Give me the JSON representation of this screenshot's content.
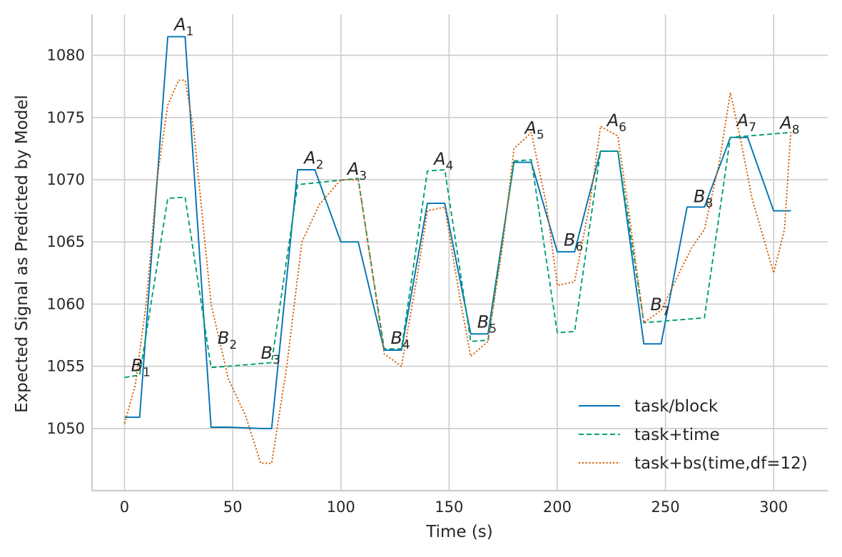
{
  "chart_data": {
    "type": "line",
    "xlabel": "Time (s)",
    "ylabel": "Expected Signal as Predicted by Model",
    "xlim": [
      -15,
      325
    ],
    "ylim": [
      1045,
      1083.3
    ],
    "xticks": [
      0,
      50,
      100,
      150,
      200,
      250,
      300
    ],
    "yticks": [
      1050,
      1055,
      1060,
      1065,
      1070,
      1075,
      1080
    ],
    "grid": true,
    "legend_position": "lower-right",
    "series": [
      {
        "name": "task/block",
        "color": "#0072B2",
        "dash": "solid",
        "x": [
          0,
          7,
          20,
          28,
          40,
          48,
          63,
          68,
          80,
          88,
          100,
          108,
          120,
          128,
          140,
          148,
          160,
          168,
          180,
          188,
          200,
          208,
          220,
          228,
          240,
          248,
          260,
          268,
          280,
          288,
          300,
          308
        ],
        "y": [
          1050.9,
          1050.9,
          1081.5,
          1081.5,
          1050.1,
          1050.1,
          1050.0,
          1050.0,
          1070.8,
          1070.8,
          1065.0,
          1065.0,
          1056.3,
          1056.3,
          1068.1,
          1068.1,
          1057.6,
          1057.6,
          1071.4,
          1071.4,
          1064.2,
          1064.2,
          1072.3,
          1072.3,
          1056.8,
          1056.8,
          1067.8,
          1067.8,
          1073.4,
          1073.4,
          1067.5,
          1067.5
        ]
      },
      {
        "name": "task+time",
        "color": "#009E73",
        "dash": "dashed",
        "x": [
          0,
          7,
          20,
          28,
          40,
          48,
          68,
          80,
          108,
          120,
          128,
          140,
          148,
          160,
          168,
          180,
          188,
          200,
          208,
          220,
          228,
          240,
          268,
          280,
          308
        ],
        "y": [
          1054.1,
          1054.3,
          1068.5,
          1068.6,
          1054.9,
          1055.0,
          1055.3,
          1069.6,
          1070.1,
          1056.4,
          1056.4,
          1070.7,
          1070.8,
          1057.0,
          1057.1,
          1071.5,
          1071.6,
          1057.7,
          1057.8,
          1072.3,
          1072.3,
          1058.5,
          1058.9,
          1073.4,
          1073.8
        ]
      },
      {
        "name": "task+bs(time,df=12)",
        "color": "#D55E00",
        "dash": "dotted",
        "x": [
          0,
          5,
          10,
          15,
          20,
          25,
          28,
          32,
          40,
          48,
          56,
          63,
          68,
          75,
          82,
          90,
          100,
          108,
          115,
          120,
          128,
          135,
          140,
          148,
          155,
          160,
          168,
          175,
          180,
          188,
          195,
          200,
          208,
          215,
          220,
          228,
          235,
          240,
          248,
          255,
          262,
          268,
          275,
          280,
          285,
          290,
          300,
          305,
          308
        ],
        "y": [
          1050.4,
          1053.5,
          1060.0,
          1070.0,
          1076.0,
          1078.0,
          1078.0,
          1074.0,
          1060.0,
          1054.0,
          1051.0,
          1047.2,
          1047.2,
          1055.0,
          1065.0,
          1068.0,
          1070.0,
          1070.0,
          1062.0,
          1056.0,
          1055.0,
          1062.0,
          1067.5,
          1067.8,
          1060.5,
          1055.8,
          1057.0,
          1065.0,
          1072.5,
          1073.8,
          1068.0,
          1061.5,
          1061.8,
          1068.0,
          1074.3,
          1073.5,
          1065.0,
          1058.5,
          1059.5,
          1062.0,
          1064.5,
          1066.0,
          1071.5,
          1077.0,
          1073.0,
          1068.5,
          1062.5,
          1066.0,
          1074.0
        ]
      }
    ],
    "annotations": [
      {
        "base": "A",
        "sub": "1",
        "x": 23,
        "y": 1082.0
      },
      {
        "base": "B",
        "sub": "1",
        "x": 3,
        "y": 1054.6
      },
      {
        "base": "B",
        "sub": "2",
        "x": 43,
        "y": 1056.8
      },
      {
        "base": "B",
        "sub": "3",
        "x": 63,
        "y": 1055.6
      },
      {
        "base": "A",
        "sub": "2",
        "x": 83,
        "y": 1071.3
      },
      {
        "base": "A",
        "sub": "3",
        "x": 103,
        "y": 1070.4
      },
      {
        "base": "B",
        "sub": "4",
        "x": 123,
        "y": 1056.8
      },
      {
        "base": "A",
        "sub": "4",
        "x": 143,
        "y": 1071.2
      },
      {
        "base": "B",
        "sub": "5",
        "x": 163,
        "y": 1058.1
      },
      {
        "base": "A",
        "sub": "5",
        "x": 185,
        "y": 1073.7
      },
      {
        "base": "B",
        "sub": "6",
        "x": 203,
        "y": 1064.7
      },
      {
        "base": "A",
        "sub": "6",
        "x": 223,
        "y": 1074.3
      },
      {
        "base": "B",
        "sub": "7",
        "x": 243,
        "y": 1059.5
      },
      {
        "base": "B",
        "sub": "8",
        "x": 263,
        "y": 1068.2
      },
      {
        "base": "A",
        "sub": "7",
        "x": 283,
        "y": 1074.3
      },
      {
        "base": "A",
        "sub": "8",
        "x": 303,
        "y": 1074.1
      }
    ]
  }
}
